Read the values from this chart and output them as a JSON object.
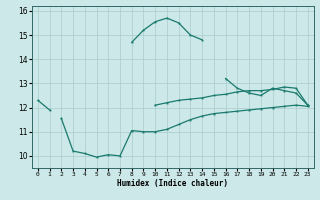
{
  "xlabel": "Humidex (Indice chaleur)",
  "x": [
    0,
    1,
    2,
    3,
    4,
    5,
    6,
    7,
    8,
    9,
    10,
    11,
    12,
    13,
    14,
    15,
    16,
    17,
    18,
    19,
    20,
    21,
    22,
    23
  ],
  "curve_max": [
    12.3,
    11.9,
    null,
    null,
    null,
    null,
    null,
    null,
    14.7,
    15.2,
    15.55,
    15.7,
    15.5,
    15.0,
    14.8,
    null,
    13.2,
    12.8,
    12.6,
    12.5,
    12.8,
    12.7,
    12.6,
    12.1
  ],
  "curve_mid": [
    null,
    null,
    null,
    null,
    null,
    null,
    null,
    null,
    null,
    null,
    12.1,
    12.2,
    12.3,
    12.35,
    12.4,
    12.5,
    12.55,
    12.65,
    12.7,
    12.7,
    12.75,
    12.85,
    12.8,
    12.1
  ],
  "curve_min": [
    null,
    null,
    11.55,
    10.2,
    10.1,
    9.95,
    10.05,
    10.0,
    11.05,
    11.0,
    11.0,
    11.1,
    11.3,
    11.5,
    11.65,
    11.75,
    11.8,
    11.85,
    11.9,
    11.95,
    12.0,
    12.05,
    12.1,
    12.05
  ],
  "color": "#1a7a6e",
  "bg_color": "#cce8e8",
  "grid_color": "#aacccc",
  "ylim": [
    9.5,
    16.2
  ],
  "xlim": [
    -0.5,
    23.5
  ],
  "yticks": [
    10,
    11,
    12,
    13,
    14,
    15,
    16
  ],
  "xticks": [
    0,
    1,
    2,
    3,
    4,
    5,
    6,
    7,
    8,
    9,
    10,
    11,
    12,
    13,
    14,
    15,
    16,
    17,
    18,
    19,
    20,
    21,
    22,
    23
  ]
}
